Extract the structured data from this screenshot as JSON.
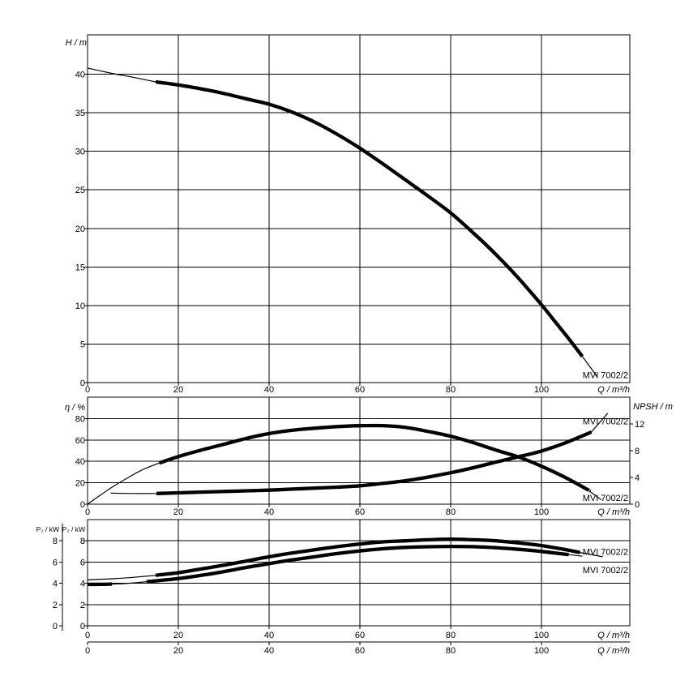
{
  "page": {
    "background": "#ffffff",
    "line_color": "#000000"
  },
  "pump_model": "MVI 7002/2",
  "chart_data": [
    {
      "id": "head",
      "type": "line",
      "title": "",
      "x_axis": {
        "label": "Q / m³/h",
        "ticks": [
          0,
          20,
          40,
          60,
          80,
          100
        ],
        "min": 0,
        "max": 119.5
      },
      "y_axis": {
        "label": "H / m",
        "ticks": [
          0,
          5,
          10,
          15,
          20,
          25,
          30,
          35,
          40
        ],
        "min": 0,
        "max": 45.1
      },
      "grid": true,
      "series": [
        {
          "name": "head-curve",
          "pump": "MVI 7002/2",
          "segments": [
            {
              "weight": "thin",
              "points": [
                [
                  0,
                  40.8
                ],
                [
                  5,
                  40.15
                ],
                [
                  10,
                  39.6
                ],
                [
                  15,
                  39.0
                ]
              ]
            },
            {
              "weight": "thick",
              "points": [
                [
                  15,
                  39.0
                ],
                [
                  20,
                  38.6
                ],
                [
                  25,
                  38.1
                ],
                [
                  30,
                  37.5
                ],
                [
                  35,
                  36.8
                ],
                [
                  40,
                  36.1
                ],
                [
                  45,
                  35.1
                ],
                [
                  50,
                  33.8
                ],
                [
                  55,
                  32.2
                ],
                [
                  60,
                  30.4
                ],
                [
                  65,
                  28.4
                ],
                [
                  70,
                  26.3
                ],
                [
                  75,
                  24.2
                ],
                [
                  80,
                  22.0
                ],
                [
                  85,
                  19.4
                ],
                [
                  90,
                  16.6
                ],
                [
                  95,
                  13.5
                ],
                [
                  100,
                  10.1
                ],
                [
                  103,
                  7.9
                ],
                [
                  106,
                  5.7
                ],
                [
                  109,
                  3.4
                ]
              ]
            },
            {
              "weight": "thin",
              "points": [
                [
                  109,
                  3.4
                ],
                [
                  111,
                  1.8
                ],
                [
                  112.3,
                  0.7
                ]
              ]
            }
          ]
        }
      ],
      "annotations": [
        {
          "text": "MVI 7002/2",
          "x": 119.1,
          "y": 1.0,
          "axis": "left",
          "anchor": "end"
        }
      ]
    },
    {
      "id": "eff",
      "type": "line",
      "title": "",
      "x_axis": {
        "label": "Q / m³/h",
        "ticks": [
          0,
          20,
          40,
          60,
          80,
          100
        ],
        "min": 0,
        "max": 119.5
      },
      "y_axis": {
        "label": "η / %",
        "ticks": [
          0,
          20,
          40,
          60,
          80
        ],
        "min": 0,
        "max": 100
      },
      "y_axis_right": {
        "label": "NPSH / m",
        "ticks": [
          0,
          4,
          8,
          12
        ],
        "min": 0,
        "max": 16
      },
      "grid": true,
      "series": [
        {
          "name": "efficiency-curve",
          "pump": "MVI 7002/2",
          "axis": "left",
          "segments": [
            {
              "weight": "thin",
              "points": [
                [
                  0,
                  0
                ],
                [
                  3,
                  9
                ],
                [
                  6,
                  17.5
                ],
                [
                  9,
                  25
                ],
                [
                  12,
                  32
                ],
                [
                  15.8,
                  38.5
                ]
              ]
            },
            {
              "weight": "thick",
              "points": [
                [
                  15.8,
                  38.5
                ],
                [
                  20,
                  44.5
                ],
                [
                  25,
                  50.5
                ],
                [
                  30,
                  56
                ],
                [
                  35,
                  61.5
                ],
                [
                  40,
                  66
                ],
                [
                  45,
                  69
                ],
                [
                  50,
                  71
                ],
                [
                  55,
                  72.5
                ],
                [
                  60,
                  73.3
                ],
                [
                  65,
                  73.4
                ],
                [
                  70,
                  71.8
                ],
                [
                  75,
                  68
                ],
                [
                  80,
                  63.5
                ],
                [
                  85,
                  57.5
                ],
                [
                  90,
                  50.5
                ],
                [
                  95,
                  44
                ],
                [
                  100,
                  35.5
                ],
                [
                  105,
                  25.5
                ],
                [
                  110,
                  14
                ],
                [
                  110.4,
                  12.8
                ]
              ]
            },
            {
              "weight": "thin",
              "points": [
                [
                  110.4,
                  12.8
                ],
                [
                  113.2,
                  4
                ]
              ]
            }
          ]
        },
        {
          "name": "npsh-curve",
          "pump": "MVI 7002/2",
          "axis": "right",
          "segments": [
            {
              "weight": "thin",
              "points": [
                [
                  5.1,
                  1.65
                ],
                [
                  10,
                  1.6
                ],
                [
                  15.2,
                  1.6
                ]
              ]
            },
            {
              "weight": "thick",
              "points": [
                [
                  15.2,
                  1.6
                ],
                [
                  20,
                  1.7
                ],
                [
                  25,
                  1.8
                ],
                [
                  30,
                  1.9
                ],
                [
                  35,
                  2.0
                ],
                [
                  40,
                  2.1
                ],
                [
                  45,
                  2.25
                ],
                [
                  50,
                  2.4
                ],
                [
                  55,
                  2.55
                ],
                [
                  60,
                  2.75
                ],
                [
                  65,
                  3.1
                ],
                [
                  70,
                  3.5
                ],
                [
                  75,
                  4.05
                ],
                [
                  80,
                  4.7
                ],
                [
                  85,
                  5.45
                ],
                [
                  90,
                  6.3
                ],
                [
                  95,
                  7.1
                ],
                [
                  100,
                  7.95
                ],
                [
                  105,
                  9.1
                ],
                [
                  110,
                  10.5
                ],
                [
                  111,
                  10.8
                ]
              ]
            },
            {
              "weight": "thin",
              "points": [
                [
                  111,
                  10.8
                ],
                [
                  114.6,
                  13.6
                ]
              ]
            }
          ]
        }
      ],
      "annotations": [
        {
          "text": "MVI 7002/2",
          "x": 119.1,
          "y": 12.4,
          "axis": "right",
          "anchor": "end"
        },
        {
          "text": "MVI 7002/2",
          "x": 119.1,
          "y": 6.1,
          "axis": "left",
          "anchor": "end"
        }
      ]
    },
    {
      "id": "power",
      "type": "line",
      "title": "",
      "x_axis": {
        "label": "Q / m³/h",
        "ticks": [
          0,
          20,
          40,
          60,
          80,
          100
        ],
        "min": 0,
        "max": 119.5
      },
      "x_axis_2": {
        "label": "Q / m³/h",
        "ticks": [
          0,
          20,
          40,
          60,
          80,
          100
        ],
        "min": 0,
        "max": 119.5
      },
      "y_axis": {
        "label": "P₂ / kW",
        "ticks": [
          0,
          2,
          4,
          6,
          8
        ],
        "min": 0,
        "max": 10
      },
      "y_axis_outer": {
        "label": "P₂ / kW",
        "ticks": [
          0,
          2,
          4,
          6,
          8
        ],
        "min": 0,
        "max": 10
      },
      "grid": true,
      "series": [
        {
          "name": "power-curve-1",
          "pump": "MVI 7002/2",
          "segments": [
            {
              "weight": "thin",
              "points": [
                [
                  0,
                  4.33
                ],
                [
                  5,
                  4.42
                ],
                [
                  10,
                  4.56
                ],
                [
                  15,
                  4.75
                ]
              ]
            },
            {
              "weight": "thick",
              "points": [
                [
                  15,
                  4.75
                ],
                [
                  20,
                  5.0
                ],
                [
                  25,
                  5.35
                ],
                [
                  30,
                  5.7
                ],
                [
                  35,
                  6.1
                ],
                [
                  40,
                  6.5
                ],
                [
                  45,
                  6.85
                ],
                [
                  50,
                  7.15
                ],
                [
                  55,
                  7.45
                ],
                [
                  60,
                  7.7
                ],
                [
                  65,
                  7.9
                ],
                [
                  70,
                  8.0
                ],
                [
                  75,
                  8.1
                ],
                [
                  80,
                  8.15
                ],
                [
                  85,
                  8.1
                ],
                [
                  90,
                  8.0
                ],
                [
                  95,
                  7.8
                ],
                [
                  100,
                  7.55
                ],
                [
                  105,
                  7.2
                ],
                [
                  108.5,
                  6.9
                ]
              ]
            },
            {
              "weight": "thin",
              "points": [
                [
                  108.5,
                  6.9
                ],
                [
                  113.5,
                  6.5
                ]
              ]
            }
          ]
        },
        {
          "name": "power-curve-2",
          "pump": "MVI 7002/2",
          "segments": [
            {
              "weight": "thick",
              "points": [
                [
                  0,
                  3.9
                ],
                [
                  3,
                  3.9
                ],
                [
                  5.4,
                  3.93
                ]
              ]
            },
            {
              "weight": "thin",
              "points": [
                [
                  5.4,
                  3.93
                ],
                [
                  9,
                  4.0
                ],
                [
                  13,
                  4.15
                ]
              ]
            },
            {
              "weight": "thick",
              "points": [
                [
                  13,
                  4.15
                ],
                [
                  20,
                  4.45
                ],
                [
                  25,
                  4.75
                ],
                [
                  30,
                  5.1
                ],
                [
                  35,
                  5.5
                ],
                [
                  40,
                  5.85
                ],
                [
                  45,
                  6.2
                ],
                [
                  50,
                  6.5
                ],
                [
                  55,
                  6.8
                ],
                [
                  60,
                  7.05
                ],
                [
                  65,
                  7.25
                ],
                [
                  70,
                  7.38
                ],
                [
                  75,
                  7.44
                ],
                [
                  80,
                  7.47
                ],
                [
                  85,
                  7.45
                ],
                [
                  90,
                  7.35
                ],
                [
                  95,
                  7.2
                ],
                [
                  100,
                  7.0
                ],
                [
                  103,
                  6.85
                ],
                [
                  106,
                  6.7
                ]
              ]
            },
            {
              "weight": "thin",
              "points": [
                [
                  106,
                  6.7
                ],
                [
                  109,
                  6.55
                ]
              ]
            }
          ]
        }
      ],
      "annotations": [
        {
          "text": "MVI 7002/2",
          "x": 119.1,
          "y": 7.0,
          "axis": "left",
          "anchor": "end"
        },
        {
          "text": "MVI 7002/2",
          "x": 119.1,
          "y": 5.27,
          "axis": "left",
          "anchor": "end"
        }
      ]
    }
  ]
}
